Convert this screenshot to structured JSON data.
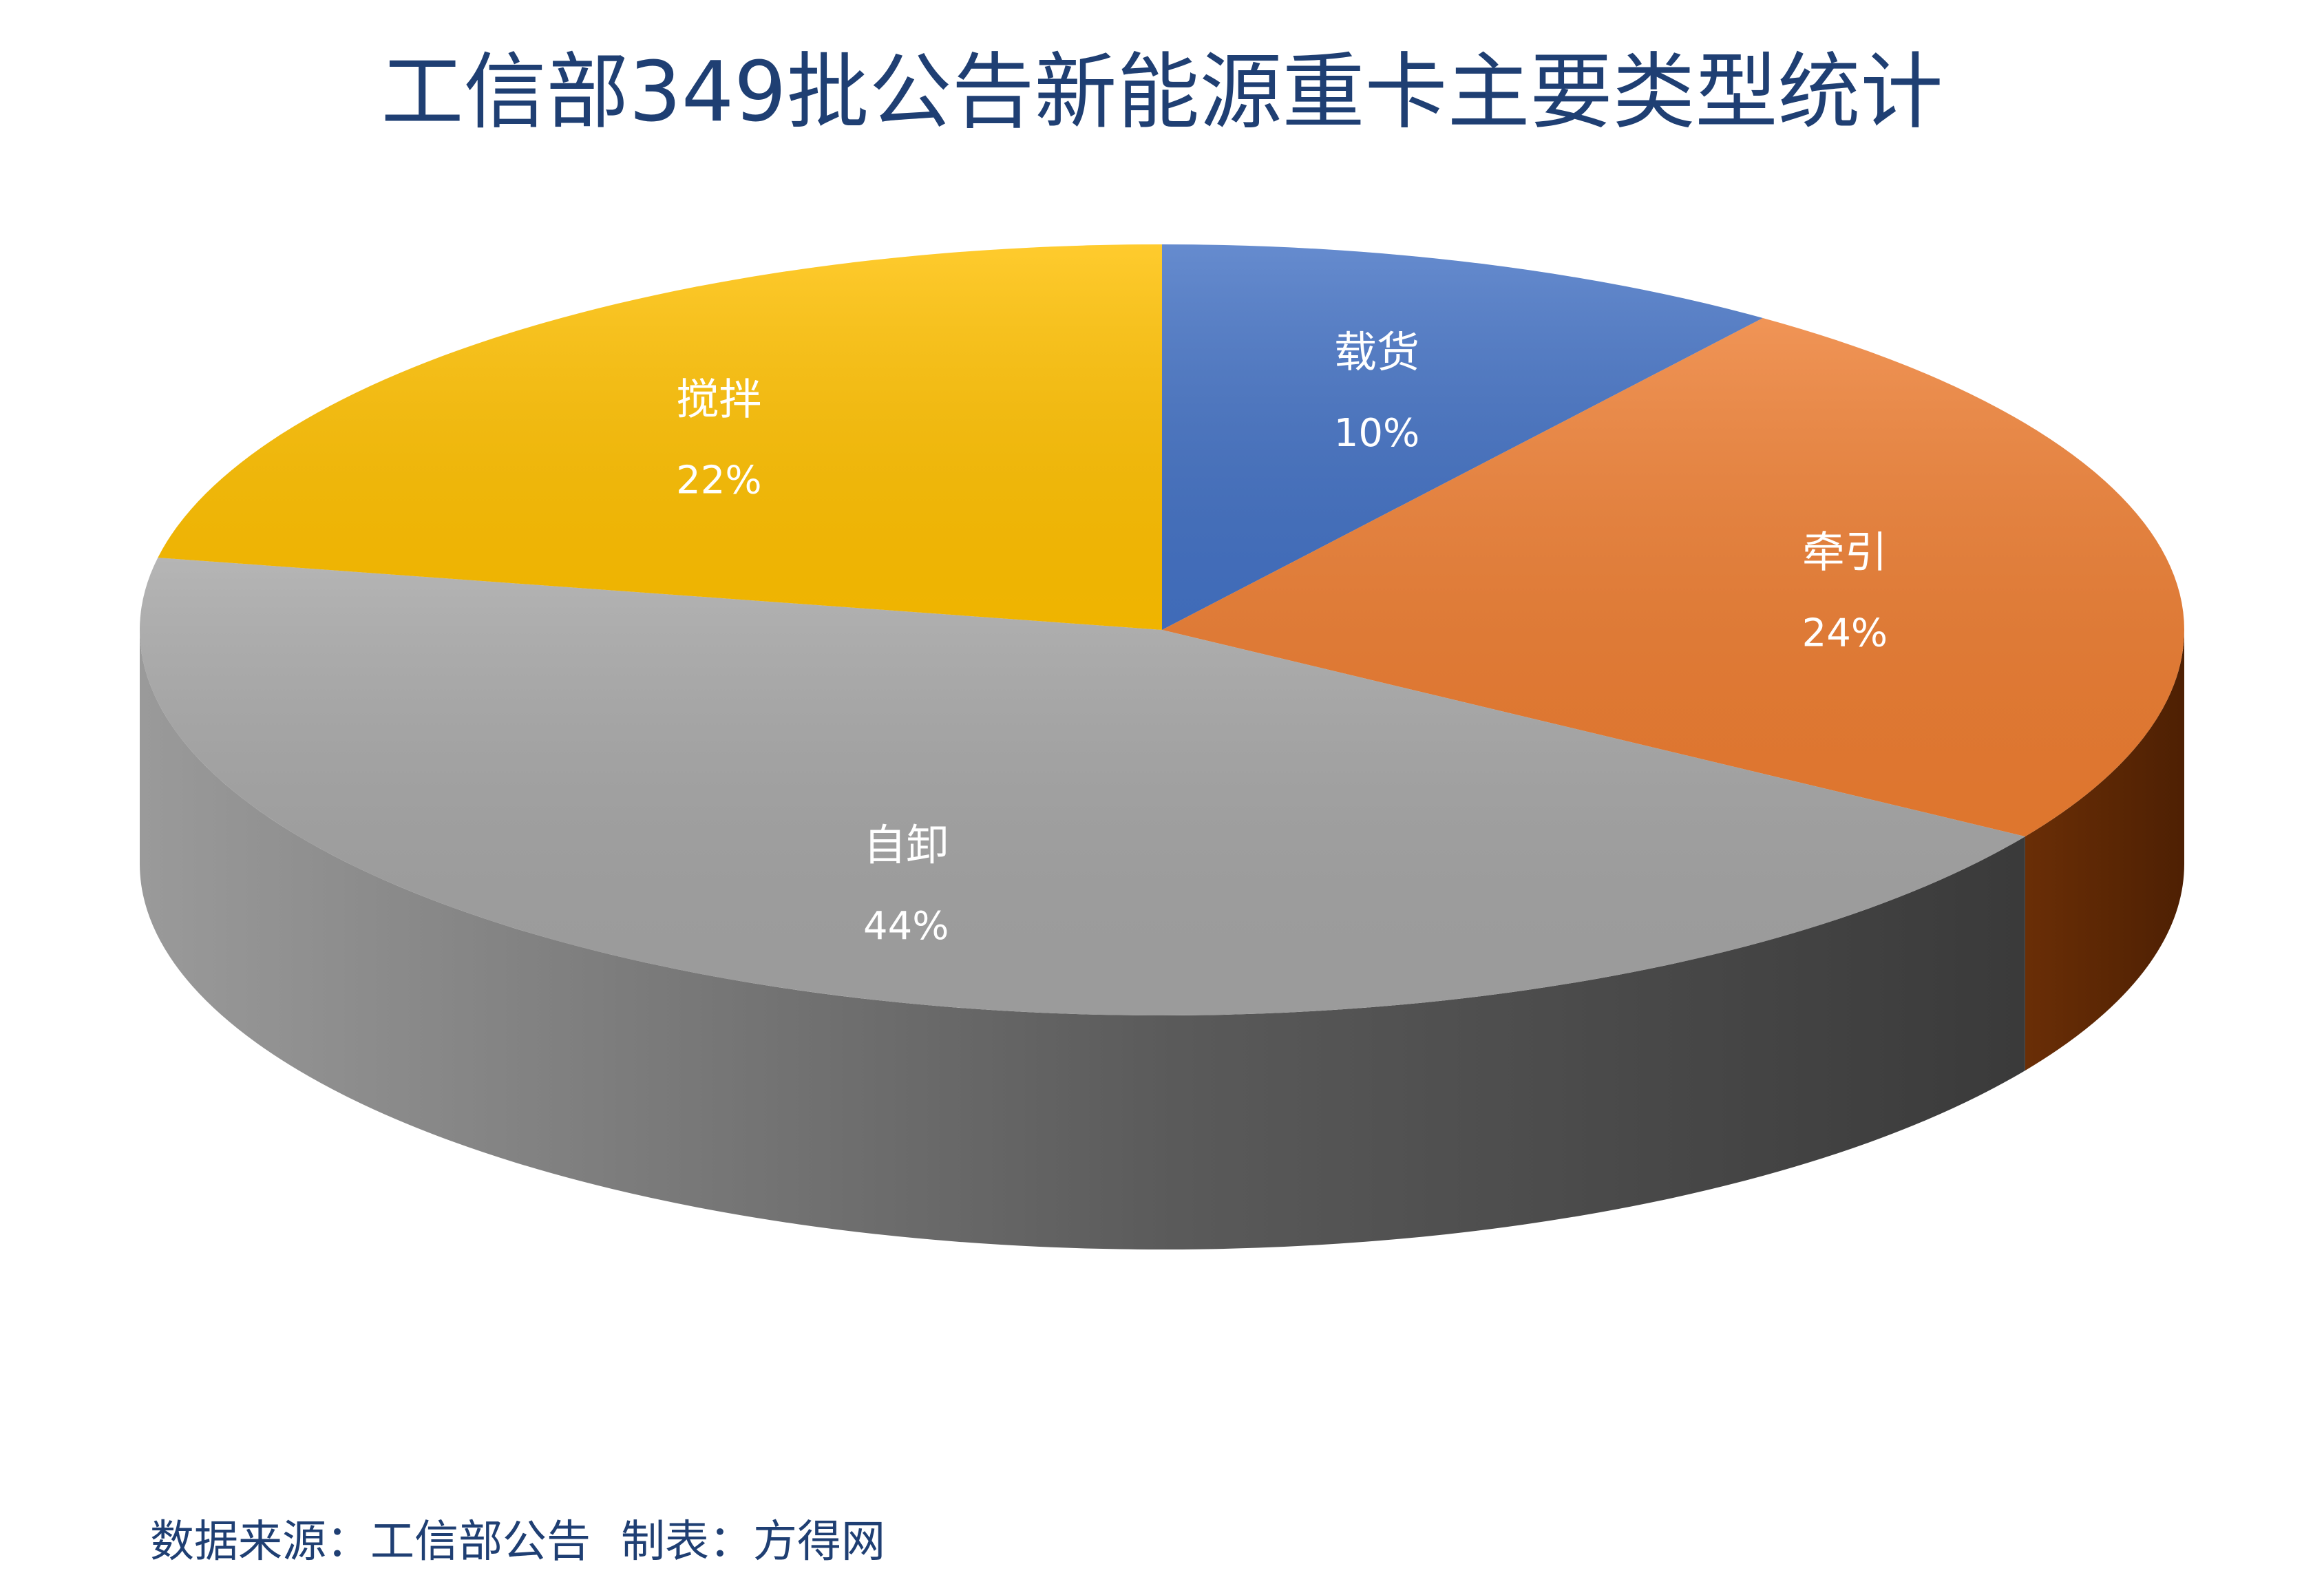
{
  "chart_data": {
    "type": "pie",
    "title": "工信部349批公告新能源重卡主要类型统计",
    "slices": [
      {
        "label": "载货",
        "percent_label": "10%",
        "value": 10,
        "color": "#4472c4"
      },
      {
        "label": "牵引",
        "percent_label": "24%",
        "value": 24,
        "color": "#ed7d31"
      },
      {
        "label": "自卸",
        "percent_label": "44%",
        "value": 44,
        "color": "#a5a5a5"
      },
      {
        "label": "搅拌",
        "percent_label": "22%",
        "value": 22,
        "color": "#ffc000"
      }
    ],
    "legend": "none",
    "style": "3d-pie"
  },
  "footer": {
    "source": "数据来源：工信部公告",
    "credit": "制表：方得网"
  }
}
